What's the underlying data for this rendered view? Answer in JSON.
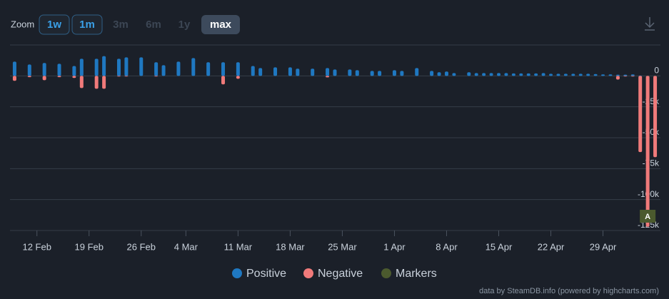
{
  "zoom": {
    "label": "Zoom",
    "buttons": [
      "1w",
      "1m",
      "3m",
      "6m",
      "1y",
      "max"
    ]
  },
  "chart_data": {
    "type": "bar",
    "x": [
      "02-09",
      "02-11",
      "02-13",
      "02-15",
      "02-17",
      "02-18",
      "02-20",
      "02-21",
      "02-23",
      "02-24",
      "02-26",
      "02-28",
      "03-01",
      "03-03",
      "03-05",
      "03-07",
      "03-09",
      "03-11",
      "03-13",
      "03-14",
      "03-16",
      "03-18",
      "03-19",
      "03-21",
      "03-23",
      "03-24",
      "03-26",
      "03-27",
      "03-29",
      "03-30",
      "04-01",
      "04-02",
      "04-04",
      "04-06",
      "04-07",
      "04-08",
      "04-09",
      "04-11",
      "04-12",
      "04-13",
      "04-14",
      "04-15",
      "04-16",
      "04-17",
      "04-18",
      "04-19",
      "04-20",
      "04-21",
      "04-22",
      "04-23",
      "04-24",
      "04-25",
      "04-26",
      "04-27",
      "04-28",
      "04-29",
      "04-30",
      "05-01",
      "05-02",
      "05-03",
      "05-04",
      "05-05",
      "05-06"
    ],
    "series": [
      {
        "name": "Positive",
        "color": "#1f78c1",
        "values": [
          11500,
          9200,
          10400,
          9800,
          8000,
          13800,
          13800,
          16000,
          13800,
          15000,
          15000,
          11000,
          8600,
          11500,
          14400,
          11000,
          11000,
          11000,
          8000,
          6300,
          6900,
          6900,
          5800,
          5800,
          6300,
          5200,
          5200,
          4600,
          4000,
          4000,
          4600,
          4000,
          6300,
          4000,
          2900,
          3500,
          2300,
          2900,
          2300,
          2300,
          2300,
          2300,
          2300,
          2000,
          2000,
          2000,
          2000,
          2300,
          1700,
          1700,
          1700,
          1700,
          1700,
          1700,
          1500,
          1200,
          1200,
          1000,
          1000,
          1200,
          300,
          0,
          0
        ]
      },
      {
        "name": "Negative",
        "color": "#f07a7a",
        "values": [
          -4000,
          -1000,
          -3500,
          -1000,
          -1700,
          -9800,
          -10400,
          -10400,
          -500,
          -500,
          0,
          -500,
          0,
          0,
          0,
          0,
          -6900,
          -2300,
          0,
          0,
          0,
          0,
          0,
          0,
          -1200,
          0,
          0,
          0,
          0,
          0,
          0,
          0,
          0,
          0,
          0,
          0,
          0,
          0,
          0,
          0,
          0,
          0,
          0,
          0,
          0,
          0,
          0,
          0,
          0,
          0,
          0,
          0,
          0,
          0,
          0,
          0,
          0,
          -3000,
          -500,
          -500,
          -61600,
          -122000,
          -65700
        ]
      },
      {
        "name": "Markers",
        "color": "#4b5a2e"
      }
    ],
    "markers": [
      {
        "x": "05-05",
        "label": "A"
      }
    ],
    "xlim": [
      "02-08",
      "05-07"
    ],
    "xticks": [
      {
        "value": "02-12",
        "label": "12 Feb"
      },
      {
        "value": "02-19",
        "label": "19 Feb"
      },
      {
        "value": "02-26",
        "label": "26 Feb"
      },
      {
        "value": "03-04",
        "label": "4 Mar"
      },
      {
        "value": "03-11",
        "label": "11 Mar"
      },
      {
        "value": "03-18",
        "label": "18 Mar"
      },
      {
        "value": "03-25",
        "label": "25 Mar"
      },
      {
        "value": "04-01",
        "label": "1 Apr"
      },
      {
        "value": "04-08",
        "label": "8 Apr"
      },
      {
        "value": "04-15",
        "label": "15 Apr"
      },
      {
        "value": "04-22",
        "label": "22 Apr"
      },
      {
        "value": "04-29",
        "label": "29 Apr"
      }
    ],
    "ylim": [
      -125000,
      25000
    ],
    "yticks": [
      {
        "value": 0,
        "label": "0"
      },
      {
        "value": -25000,
        "label": "-25k"
      },
      {
        "value": -50000,
        "label": "-50k"
      },
      {
        "value": -75000,
        "label": "-75k"
      },
      {
        "value": -100000,
        "label": "-100k"
      },
      {
        "value": -125000,
        "label": "-125k"
      }
    ],
    "grid": true,
    "credit": "data by SteamDB.info (powered by highcharts.com)"
  }
}
